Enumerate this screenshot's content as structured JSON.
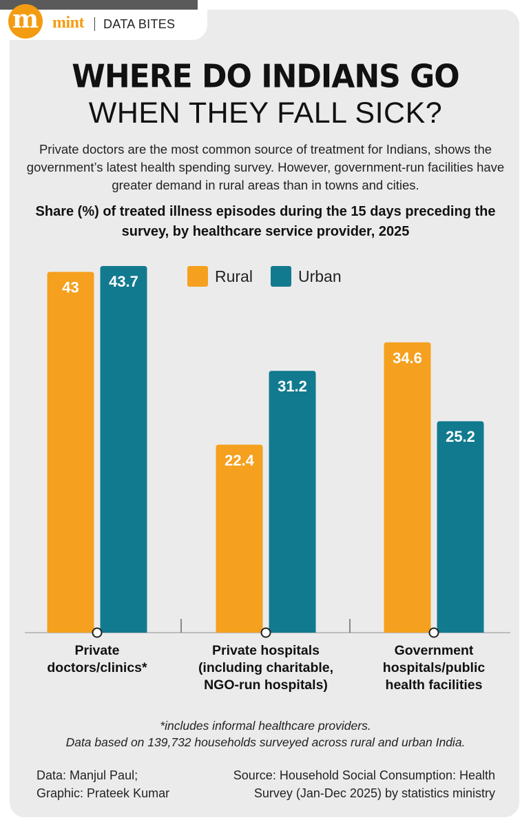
{
  "header": {
    "logo_letter": "m",
    "brand": "mint",
    "section": "DATA BITES"
  },
  "title_line1": "WHERE DO INDIANS GO",
  "title_line2": "WHEN THEY FALL SICK?",
  "subtitle": "Private doctors are the most common source of treatment for Indians, shows the government’s latest health spending survey. However, government-run facilities have greater demand in rural areas than in towns and cities.",
  "chart_heading": "Share (%) of treated illness episodes during the 15 days preceding the survey, by healthcare service provider, 2025",
  "colors": {
    "rural": "#f5a01e",
    "urban": "#127a8f",
    "panel": "#ebebeb",
    "brand": "#f39c12"
  },
  "chart_data": {
    "type": "bar",
    "categories": [
      "Private doctors/clinics*",
      "Private hospitals (including charitable, NGO-run hospitals)",
      "Government hospitals/public health facilities"
    ],
    "category_display": [
      "Private\ndoctors/clinics*",
      "Private hospitals\n(including charitable,\nNGO-run hospitals)",
      "Government\nhospitals/public\nhealth facilities"
    ],
    "series": [
      {
        "name": "Rural",
        "values": [
          43,
          22.4,
          34.6
        ],
        "labels": [
          "43",
          "22.4",
          "34.6"
        ]
      },
      {
        "name": "Urban",
        "values": [
          43.7,
          31.2,
          25.2
        ],
        "labels": [
          "43.7",
          "31.2",
          "25.2"
        ]
      }
    ],
    "ylim": [
      0,
      43.7
    ],
    "legend": "top-right",
    "grid": false
  },
  "footnote": "*includes informal healthcare providers.",
  "data_note": "Data based on 139,732 households surveyed across rural and urban India.",
  "credits": "Data: Manjul Paul;\nGraphic: Prateek Kumar",
  "source": "Source: Household Social Consumption: Health Survey (Jan-Dec 2025) by statistics ministry"
}
